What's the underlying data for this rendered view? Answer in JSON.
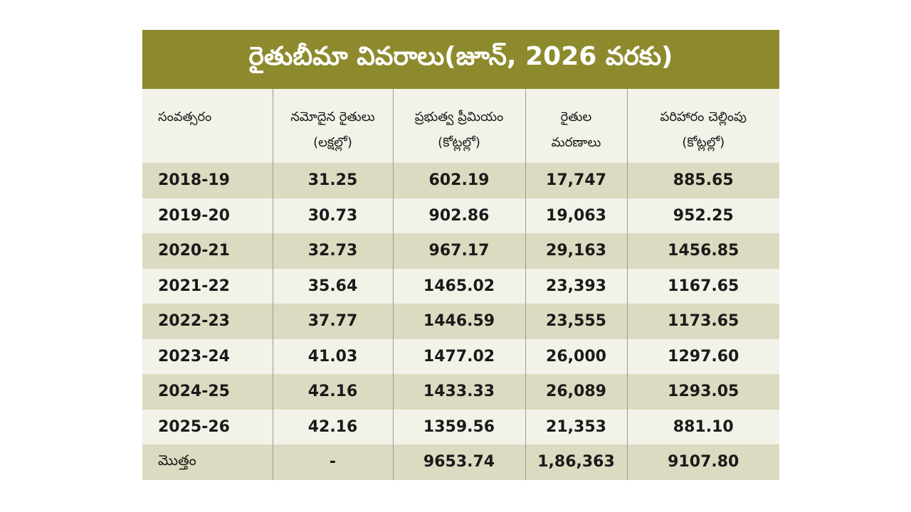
{
  "title": "రైతుబీమా వివరాలు(జూన్, 2026 వరకు)",
  "colors": {
    "title_bg": "#8c8a2c",
    "row_shade": "#dcdac0",
    "row_light": "#f2f2e9"
  },
  "headers": [
    {
      "line1": "సంవత్సరం",
      "line2": ""
    },
    {
      "line1": "నమోదైన రైతులు",
      "line2": "(లక్షల్లో)"
    },
    {
      "line1": "ప్రభుత్వ ప్రీమియం",
      "line2": "(కోట్లల్లో)"
    },
    {
      "line1": "రైతుల",
      "line2": "మరణాలు"
    },
    {
      "line1": "పరిహారం చెల్లింపు",
      "line2": "(కోట్లల్లో)"
    }
  ],
  "rows": [
    [
      "2018-19",
      "31.25",
      "602.19",
      "17,747",
      "885.65"
    ],
    [
      "2019-20",
      "30.73",
      "902.86",
      "19,063",
      "952.25"
    ],
    [
      "2020-21",
      "32.73",
      "967.17",
      "29,163",
      "1456.85"
    ],
    [
      "2021-22",
      "35.64",
      "1465.02",
      "23,393",
      "1167.65"
    ],
    [
      "2022-23",
      "37.77",
      "1446.59",
      "23,555",
      "1173.65"
    ],
    [
      "2023-24",
      "41.03",
      "1477.02",
      "26,000",
      "1297.60"
    ],
    [
      "2024-25",
      "42.16",
      "1433.33",
      "26,089",
      "1293.05"
    ],
    [
      "2025-26",
      "42.16",
      "1359.56",
      "21,353",
      "881.10"
    ]
  ],
  "total": [
    "మొత్తం",
    "-",
    "9653.74",
    "1,86,363",
    "9107.80"
  ]
}
